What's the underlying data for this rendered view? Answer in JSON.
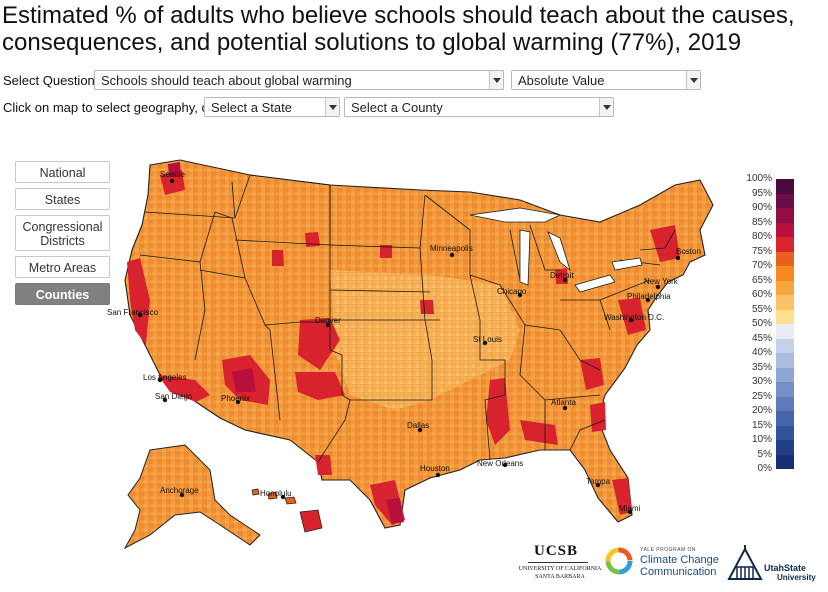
{
  "title": "Estimated % of adults who believe schools should teach about the causes, consequences, and potential solutions to global warming (77%), 2019",
  "controls": {
    "select_question_label": "Select Question:",
    "question_value": "Schools should teach about global warming",
    "mode_value": "Absolute Value",
    "geo_prompt": "Click on map to select geography, or:",
    "state_placeholder": "Select a State",
    "county_placeholder": "Select a County"
  },
  "geography_buttons": [
    {
      "label": "National",
      "active": false
    },
    {
      "label": "States",
      "active": false
    },
    {
      "label": "Congressional Districts",
      "active": false
    },
    {
      "label": "Metro Areas",
      "active": false
    },
    {
      "label": "Counties",
      "active": true
    }
  ],
  "map": {
    "cities": [
      "Seattle",
      "Minneapolis",
      "Boston",
      "Detroit",
      "Chicago",
      "New York",
      "Philadelphia",
      "Washington D.C.",
      "San Francisco",
      "Denver",
      "St Louis",
      "Los Angeles",
      "San Diego",
      "Phoenix",
      "Atlanta",
      "Dallas",
      "Houston",
      "New Orleans",
      "Tampa",
      "Miami",
      "Anchorage",
      "Honolulu"
    ],
    "colors": {
      "state_border": "#1a1a1a",
      "base_fill": "#f59a3c"
    }
  },
  "legend": {
    "labels": [
      "100%",
      "95%",
      "90%",
      "85%",
      "80%",
      "75%",
      "70%",
      "65%",
      "60%",
      "55%",
      "50%",
      "45%",
      "40%",
      "35%",
      "30%",
      "25%",
      "20%",
      "15%",
      "10%",
      "5%",
      "0%"
    ],
    "colors": [
      "#4a0a3d",
      "#6b0d46",
      "#8f0f45",
      "#b7103c",
      "#d9232e",
      "#e9601c",
      "#f5891f",
      "#f8a53f",
      "#fbc266",
      "#fdde8f",
      "#e7ecf5",
      "#c4d1ea",
      "#a8bcdf",
      "#8ea6d3",
      "#7690c6",
      "#5e7ab8",
      "#4766a9",
      "#33539a",
      "#233f88",
      "#162e73"
    ]
  },
  "logos": {
    "ucsb_name": "UCSB",
    "ucsb_sub1": "UNIVERSITY OF CALIFORNIA",
    "ucsb_sub2": "SANTA BARBARA",
    "yale_top": "YALE PROGRAM ON",
    "yale_line1": "Climate Change",
    "yale_line2": "Communication",
    "usu_line1": "UtahState",
    "usu_line2": "University"
  }
}
